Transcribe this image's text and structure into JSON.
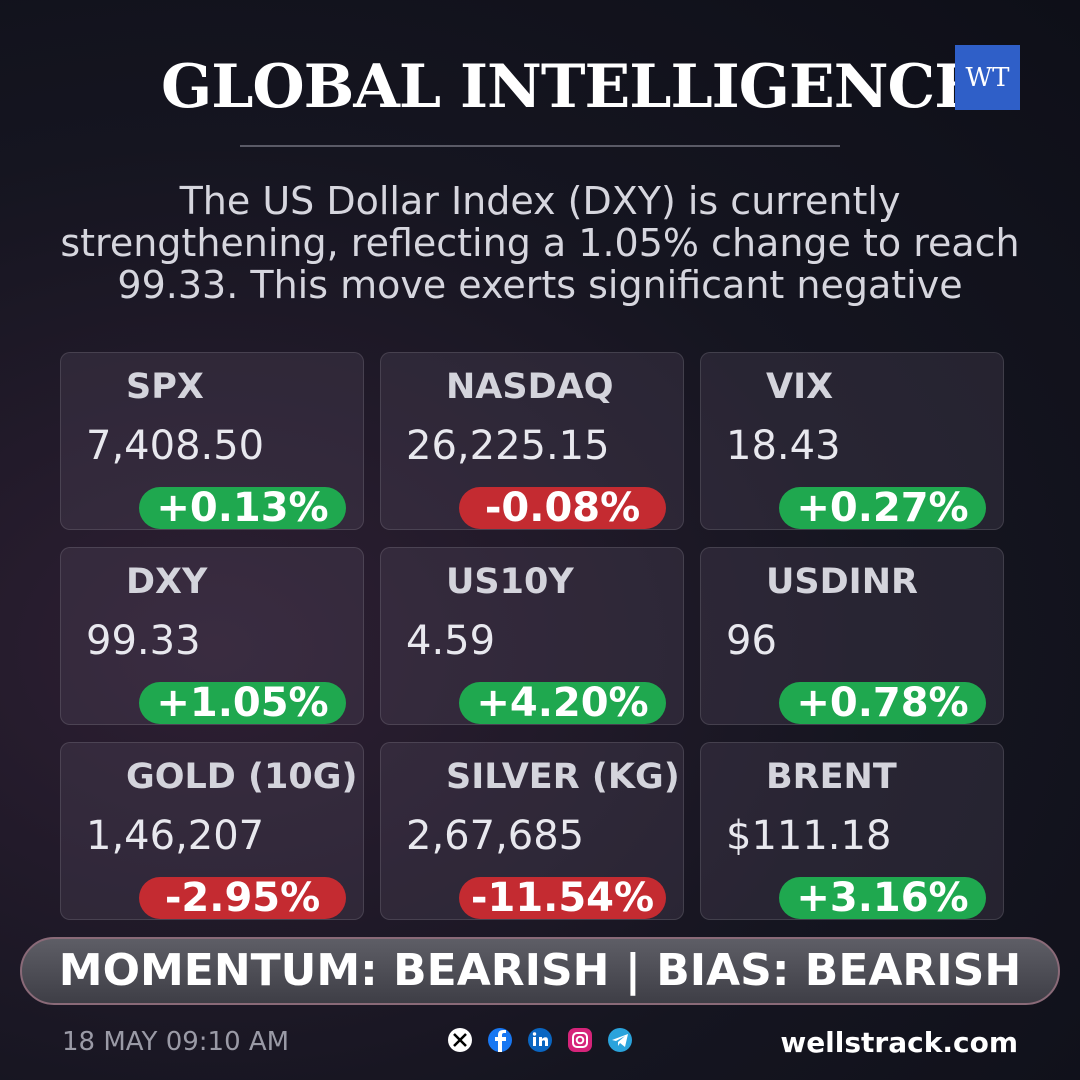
{
  "header": {
    "title": "GLOBAL INTELLIGENCE",
    "logo": "WT"
  },
  "summary": [
    "The US Dollar Index (DXY) is currently",
    "strengthening, reflecting a 1.05% change to reach",
    "99.33. This move exerts significant negative"
  ],
  "cards": [
    {
      "name": "SPX",
      "value": "7,408.50",
      "change": "+0.13%",
      "color": "#1fa84f"
    },
    {
      "name": "NASDAQ",
      "value": "26,225.15",
      "change": "-0.08%",
      "color": "#c42b31"
    },
    {
      "name": "VIX",
      "value": "18.43",
      "change": "+0.27%",
      "color": "#1fa84f"
    },
    {
      "name": "DXY",
      "value": "99.33",
      "change": "+1.05%",
      "color": "#1fa84f"
    },
    {
      "name": "US10Y",
      "value": "4.59",
      "change": "+4.20%",
      "color": "#1fa84f"
    },
    {
      "name": "USDINR",
      "value": "96",
      "change": "+0.78%",
      "color": "#1fa84f"
    },
    {
      "name": "GOLD (10G)",
      "value": "1,46,207",
      "change": "-2.95%",
      "color": "#c42b31"
    },
    {
      "name": "SILVER (KG)",
      "value": "2,67,685",
      "change": "-11.54%",
      "color": "#c42b31"
    },
    {
      "name": "BRENT",
      "value": "$111.18",
      "change": "+3.16%",
      "color": "#1fa84f"
    }
  ],
  "banner": "MOMENTUM: BEARISH | BIAS: BEARISH",
  "footer": {
    "date": "18 MAY 09:10 AM",
    "website": "wellstrack.com"
  }
}
